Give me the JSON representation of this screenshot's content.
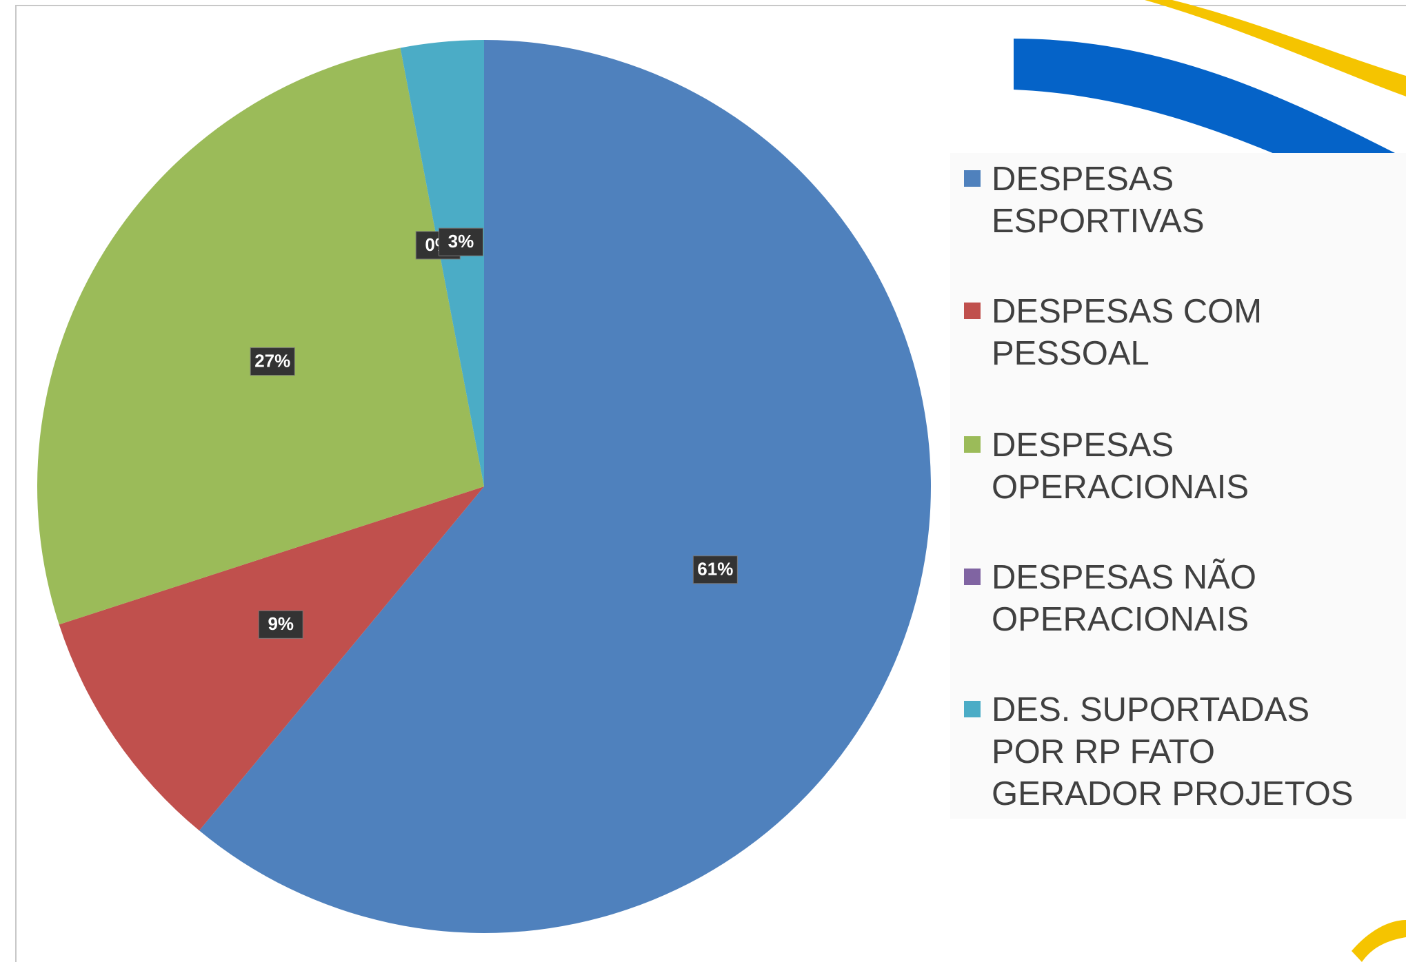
{
  "chart_data": {
    "type": "pie",
    "categories": [
      "DESPESAS ESPORTIVAS",
      "DESPESAS COM PESSOAL",
      "DESPESAS OPERACIONAIS",
      "DESPESAS NÃO OPERACIONAIS",
      "DES. SUPORTADAS POR RP FATO GERADOR PROJETOS"
    ],
    "values": [
      61,
      9,
      27,
      0,
      3
    ],
    "value_labels": [
      "61%",
      "9%",
      "27%",
      "0%",
      "3%"
    ],
    "colors": [
      "#4f81bd",
      "#c0504d",
      "#9bbb59",
      "#8064a2",
      "#4bacc6"
    ],
    "legend": "right"
  }
}
